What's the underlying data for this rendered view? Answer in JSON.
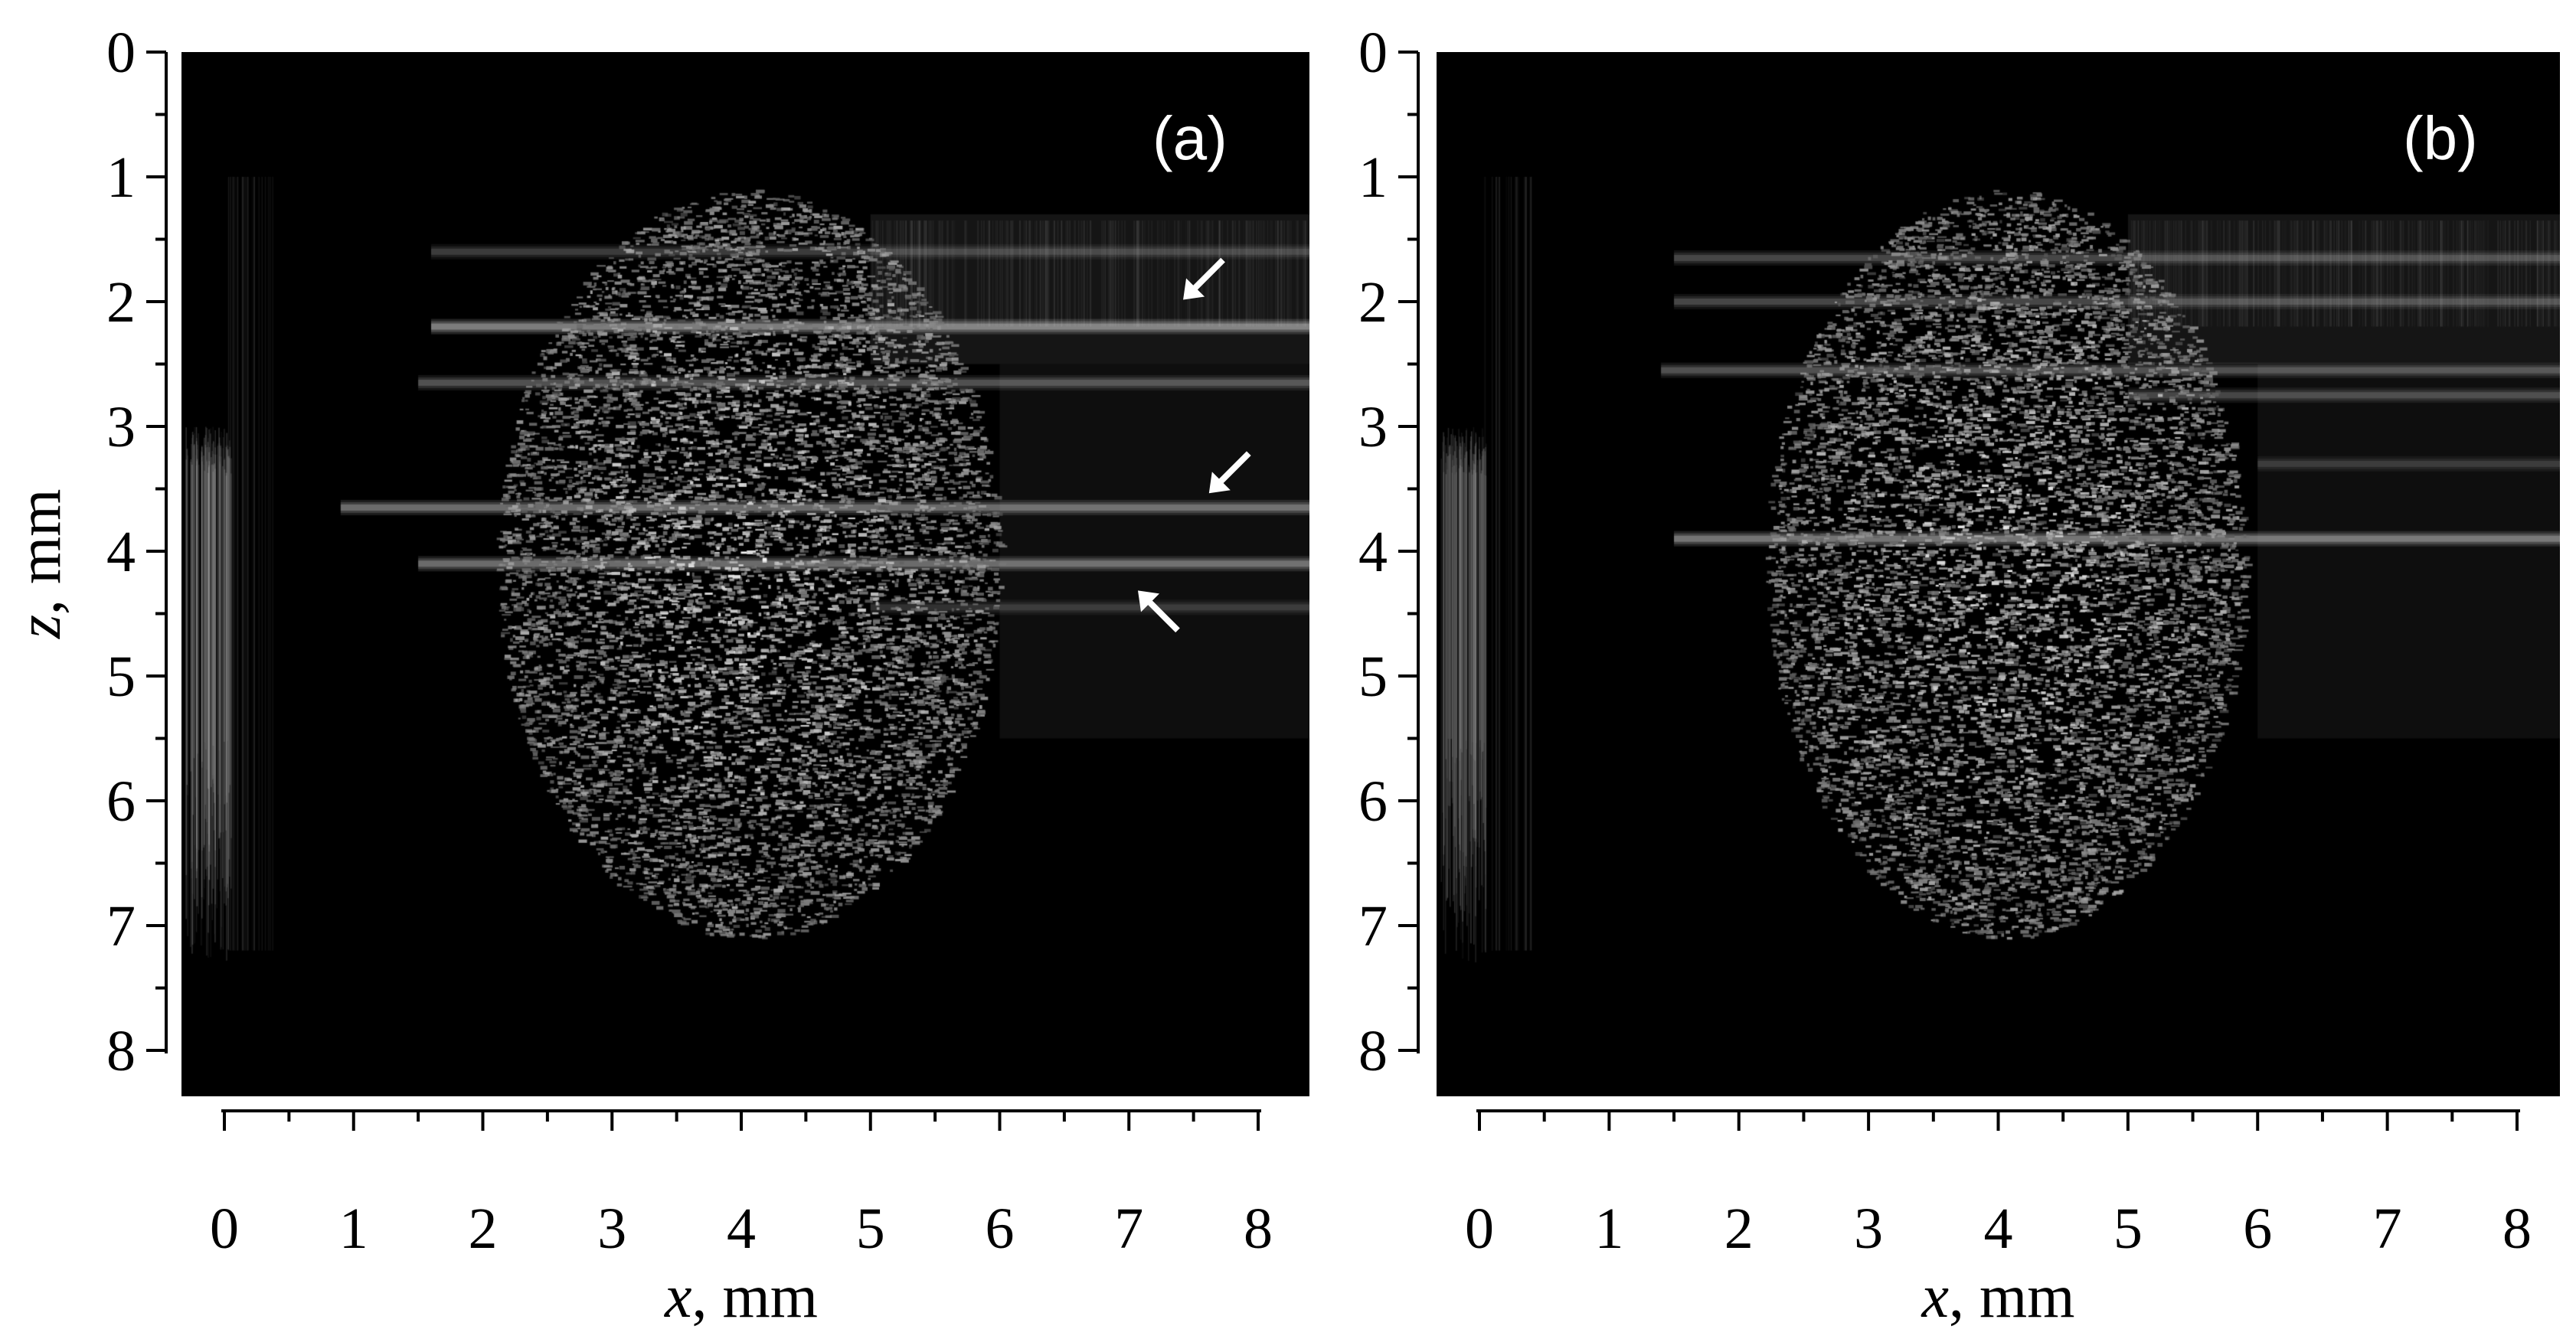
{
  "figure": {
    "panels": [
      {
        "id": "a",
        "label": "(a)",
        "xlabel_var": "x",
        "xlabel_unit": ", mm",
        "ylabel_var": "z",
        "ylabel_unit": ", mm",
        "show_ylabel": true,
        "arrows_count": 3
      },
      {
        "id": "b",
        "label": "(b)",
        "xlabel_var": "x",
        "xlabel_unit": ", mm",
        "ylabel_var": "",
        "ylabel_unit": "",
        "show_ylabel": false,
        "arrows_count": 0
      }
    ],
    "x_ticks": [
      "0",
      "1",
      "2",
      "3",
      "4",
      "5",
      "6",
      "7",
      "8"
    ],
    "z_ticks": [
      "0",
      "1",
      "2",
      "3",
      "4",
      "5",
      "6",
      "7",
      "8"
    ],
    "x_range_mm": [
      0,
      8
    ],
    "z_range_mm": [
      0,
      8
    ],
    "image_colormap": "grayscale",
    "colors": {
      "background": "#000000",
      "arrow": "#ffffff",
      "axis": "#000000"
    }
  }
}
